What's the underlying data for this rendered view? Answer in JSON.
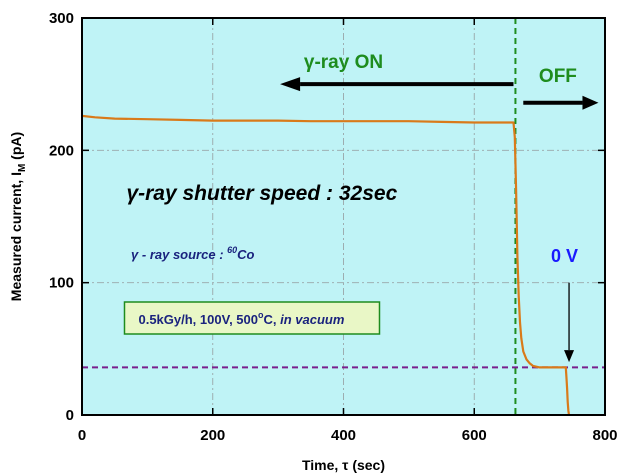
{
  "chart_data": {
    "type": "line",
    "xlabel": "Time, τ (sec)",
    "ylabel": "Measured current, I_M (pA)",
    "xlim": [
      0,
      800
    ],
    "ylim": [
      0,
      300
    ],
    "x_ticks": [
      0,
      200,
      400,
      600,
      800
    ],
    "y_ticks": [
      0,
      100,
      200,
      300
    ],
    "grid": true,
    "background_color": "#bff3f6",
    "series": [
      {
        "color": "#d97a1a",
        "x": [
          0,
          20,
          50,
          100,
          150,
          200,
          250,
          300,
          350,
          400,
          450,
          500,
          550,
          600,
          640,
          660,
          662,
          664,
          666,
          668,
          670,
          672,
          675,
          680,
          685,
          690,
          700,
          710,
          720,
          730,
          740,
          741,
          742,
          743,
          744,
          745
        ],
        "y": [
          226,
          225,
          224,
          223.5,
          223,
          222.5,
          222.5,
          222.5,
          222,
          222,
          222,
          222,
          221.5,
          221,
          221,
          221,
          210,
          170,
          120,
          90,
          70,
          58,
          48,
          42,
          39,
          37,
          36,
          36,
          36,
          36,
          36,
          29,
          20,
          10,
          3,
          0
        ]
      }
    ],
    "reference_lines": [
      {
        "orientation": "vertical",
        "x": 663,
        "color": "#1e8c1e",
        "style": "dashed"
      },
      {
        "orientation": "horizontal",
        "y": 36,
        "color": "#7a1e8c",
        "style": "dashed"
      }
    ],
    "annotations": {
      "gamma_on": {
        "text": "γ-ray ON",
        "color": "#1e8c1e",
        "arrow_from": 660,
        "arrow_to": 303,
        "arrow_y": 250
      },
      "off": {
        "text": "OFF",
        "color": "#1e8c1e",
        "arrow_from": 675,
        "arrow_to": 790,
        "arrow_y": 236
      },
      "shutter": {
        "text": "γ-ray shutter speed : 32sec",
        "color": "#000000"
      },
      "source": {
        "text_prefix": "γ - ray source : ",
        "superscript": "60",
        "text_suffix": "Co",
        "color": "#1a237e"
      },
      "conditions": {
        "text_main": "0.5kGy/h, 100V, 500",
        "degree": "o",
        "text_c": "C, ",
        "text_italic": "in vacuum",
        "color": "#1a237e",
        "box_fill": "#e9f7c6",
        "box_border": "#1e8c1e"
      },
      "zero_v": {
        "text": "0 V",
        "color": "#1a1aff",
        "arrow_x": 745,
        "arrow_from_y": 100,
        "arrow_to_y": 40
      }
    }
  }
}
